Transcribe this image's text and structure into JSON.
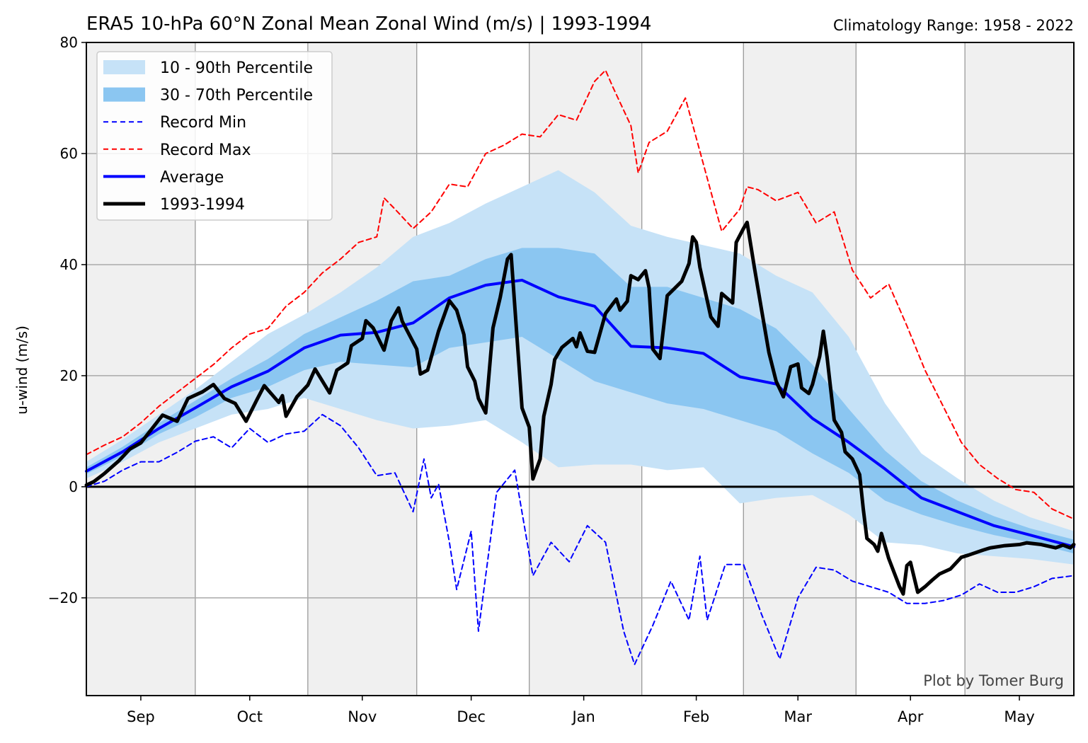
{
  "title": "ERA5 10-hPa 60°N Zonal Mean Zonal Wind (m/s) | 1993-1994",
  "subtitle_right": "Climatology Range: 1958 - 2022",
  "credit": "Plot by Tomer Burg",
  "colors": {
    "band_10_90": "#c6e2f7",
    "band_30_70": "#8bc6f1",
    "record_min": "#0000ff",
    "record_max": "#ff0000",
    "average": "#0000ff",
    "season": "#000000",
    "shaded_background": "#f0f0f0"
  },
  "legend": {
    "placement": "top-left",
    "items": [
      {
        "label": "10 - 90th Percentile",
        "kind": "patch",
        "color": "#c6e2f7"
      },
      {
        "label": "30 - 70th Percentile",
        "kind": "patch",
        "color": "#8bc6f1"
      },
      {
        "label": "Record Min",
        "kind": "dashed",
        "color": "#0000ff"
      },
      {
        "label": "Record Max",
        "kind": "dashed",
        "color": "#ff0000"
      },
      {
        "label": "Average",
        "kind": "line",
        "color": "#0000ff"
      },
      {
        "label": "1993-1994",
        "kind": "thick",
        "color": "#000000"
      }
    ]
  },
  "chart_data": {
    "type": "line",
    "title": "ERA5 10-hPa 60°N Zonal Mean Zonal Wind (m/s) | 1993-1994",
    "xlabel": "",
    "ylabel": "u-wind (m/s)",
    "xlim": [
      "1993-08-17",
      "1994-05-16"
    ],
    "ylim": [
      -37.6,
      80
    ],
    "yticks": [
      -20,
      0,
      20,
      40,
      60,
      80
    ],
    "ytick_labels": [
      "−20",
      "0",
      "20",
      "40",
      "60",
      "80"
    ],
    "xticks": [
      {
        "date": "1993-09-01",
        "label": "Sep"
      },
      {
        "date": "1993-10-01",
        "label": "Oct"
      },
      {
        "date": "1993-11-01",
        "label": "Nov"
      },
      {
        "date": "1993-12-01",
        "label": "Dec"
      },
      {
        "date": "1994-01-01",
        "label": "Jan"
      },
      {
        "date": "1994-02-01",
        "label": "Feb"
      },
      {
        "date": "1994-03-01",
        "label": "Mar"
      },
      {
        "date": "1994-04-01",
        "label": "Apr"
      },
      {
        "date": "1994-05-01",
        "label": "May"
      }
    ],
    "grid": true,
    "vertical_gridlines": [
      "1993-09-16",
      "1993-10-17",
      "1993-11-16",
      "1993-12-17",
      "1994-01-17",
      "1994-02-14",
      "1994-03-17",
      "1994-04-16"
    ],
    "shaded_bands": [
      [
        "1993-08-17",
        "1993-09-16"
      ],
      [
        "1993-10-17",
        "1993-11-16"
      ],
      [
        "1993-12-17",
        "1994-01-17"
      ],
      [
        "1994-02-14",
        "1994-03-17"
      ],
      [
        "1994-04-16",
        "1994-05-16"
      ]
    ],
    "zero_line": 0,
    "climatology_dates": [
      "1993-08-17",
      "1993-08-27",
      "1993-09-06",
      "1993-09-16",
      "1993-09-26",
      "1993-10-06",
      "1993-10-16",
      "1993-10-26",
      "1993-11-05",
      "1993-11-15",
      "1993-11-25",
      "1993-12-05",
      "1993-12-15",
      "1993-12-25",
      "1994-01-04",
      "1994-01-14",
      "1994-01-24",
      "1994-02-03",
      "1994-02-13",
      "1994-02-23",
      "1994-03-05",
      "1994-03-15",
      "1994-03-25",
      "1994-04-04",
      "1994-04-14",
      "1994-04-24",
      "1994-05-04",
      "1994-05-16"
    ],
    "p10": [
      1.5,
      4.5,
      8,
      10.5,
      13,
      14,
      16,
      14,
      12,
      10.5,
      11,
      12,
      8,
      3.5,
      4,
      4,
      3,
      3.5,
      -3,
      -2,
      -1.5,
      -5,
      -10,
      -10.5,
      -12,
      -12.5,
      -13,
      -14
    ],
    "p30": [
      2.3,
      5.5,
      9.5,
      12.5,
      16,
      18,
      21,
      22.5,
      22,
      21.5,
      25,
      26,
      27,
      23,
      19,
      17,
      15,
      14,
      12,
      10,
      6,
      2.5,
      -2.5,
      -5,
      -7,
      -8.7,
      -10,
      -12
    ],
    "p70": [
      3.5,
      7.2,
      11.5,
      15.5,
      19.5,
      23,
      27.5,
      30.5,
      33.5,
      37,
      38,
      41,
      43,
      43,
      42,
      36,
      36,
      34,
      32,
      28.5,
      22,
      14,
      6.5,
      1,
      -2.5,
      -5.3,
      -7.5,
      -9.5
    ],
    "p90": [
      4.5,
      8.5,
      13,
      17.5,
      22.5,
      27.5,
      31,
      35,
      39.5,
      45,
      47.5,
      51,
      54,
      57,
      53,
      47,
      45,
      43.5,
      42,
      38,
      35,
      27,
      15,
      6,
      1.5,
      -2.5,
      -5.5,
      -8
    ],
    "average": [
      2.8,
      6.3,
      10.5,
      14.2,
      18,
      20.8,
      25,
      27.3,
      27.8,
      29.5,
      34,
      36.3,
      37.2,
      34.2,
      32.5,
      25.3,
      25,
      24,
      19.8,
      18.5,
      12.3,
      8,
      3.2,
      -2,
      -4.5,
      -7,
      -8.7,
      -10.8
    ],
    "record_max": [
      [
        "1993-08-17",
        5.8
      ],
      [
        "1993-08-22",
        7.5
      ],
      [
        "1993-08-27",
        9
      ],
      [
        "1993-09-01",
        11.5
      ],
      [
        "1993-09-06",
        14.5
      ],
      [
        "1993-09-11",
        17
      ],
      [
        "1993-09-16",
        19.5
      ],
      [
        "1993-09-21",
        22
      ],
      [
        "1993-09-26",
        25
      ],
      [
        "1993-10-01",
        27.5
      ],
      [
        "1993-10-06",
        28.5
      ],
      [
        "1993-10-11",
        32.5
      ],
      [
        "1993-10-16",
        35
      ],
      [
        "1993-10-21",
        38.5
      ],
      [
        "1993-10-26",
        41
      ],
      [
        "1993-10-31",
        44
      ],
      [
        "1993-11-05",
        45
      ],
      [
        "1993-11-07",
        52
      ],
      [
        "1993-11-10",
        50
      ],
      [
        "1993-11-15",
        46.5
      ],
      [
        "1993-11-20",
        49.5
      ],
      [
        "1993-11-25",
        54.5
      ],
      [
        "1993-11-30",
        54
      ],
      [
        "1993-12-05",
        60
      ],
      [
        "1993-12-10",
        61.5
      ],
      [
        "1993-12-15",
        63.5
      ],
      [
        "1993-12-20",
        63
      ],
      [
        "1993-12-25",
        67
      ],
      [
        "1993-12-30",
        66
      ],
      [
        "1994-01-04",
        73
      ],
      [
        "1994-01-07",
        75
      ],
      [
        "1994-01-09",
        72
      ],
      [
        "1994-01-14",
        65
      ],
      [
        "1994-01-16",
        56.5
      ],
      [
        "1994-01-19",
        62
      ],
      [
        "1994-01-24",
        64
      ],
      [
        "1994-01-29",
        70
      ],
      [
        "1994-02-03",
        58
      ],
      [
        "1994-02-08",
        46
      ],
      [
        "1994-02-13",
        50
      ],
      [
        "1994-02-15",
        54
      ],
      [
        "1994-02-18",
        53.5
      ],
      [
        "1994-02-23",
        51.5
      ],
      [
        "1994-03-01",
        53
      ],
      [
        "1994-03-06",
        47.5
      ],
      [
        "1994-03-11",
        49.5
      ],
      [
        "1994-03-16",
        39
      ],
      [
        "1994-03-21",
        34
      ],
      [
        "1994-03-26",
        36.5
      ],
      [
        "1994-03-31",
        29
      ],
      [
        "1994-04-05",
        21
      ],
      [
        "1994-04-10",
        14.5
      ],
      [
        "1994-04-15",
        8
      ],
      [
        "1994-04-20",
        4
      ],
      [
        "1994-04-25",
        1.5
      ],
      [
        "1994-04-30",
        -0.5
      ],
      [
        "1994-05-05",
        -1
      ],
      [
        "1994-05-10",
        -4
      ],
      [
        "1994-05-16",
        -5.8
      ]
    ],
    "record_min": [
      [
        "1993-08-17",
        0
      ],
      [
        "1993-08-22",
        1
      ],
      [
        "1993-08-27",
        3
      ],
      [
        "1993-09-01",
        4.5
      ],
      [
        "1993-09-06",
        4.5
      ],
      [
        "1993-09-11",
        6.2
      ],
      [
        "1993-09-16",
        8.2
      ],
      [
        "1993-09-21",
        9
      ],
      [
        "1993-09-26",
        7
      ],
      [
        "1993-10-01",
        10.5
      ],
      [
        "1993-10-06",
        8
      ],
      [
        "1993-10-11",
        9.5
      ],
      [
        "1993-10-16",
        10
      ],
      [
        "1993-10-21",
        13
      ],
      [
        "1993-10-26",
        11
      ],
      [
        "1993-10-31",
        7
      ],
      [
        "1993-11-05",
        2
      ],
      [
        "1993-11-10",
        2.5
      ],
      [
        "1993-11-15",
        -4.5
      ],
      [
        "1993-11-18",
        5
      ],
      [
        "1993-11-20",
        -2
      ],
      [
        "1993-11-22",
        0.5
      ],
      [
        "1993-11-25",
        -10
      ],
      [
        "1993-11-27",
        -18.5
      ],
      [
        "1993-12-01",
        -8
      ],
      [
        "1993-12-03",
        -26
      ],
      [
        "1993-12-08",
        -1
      ],
      [
        "1993-12-13",
        3
      ],
      [
        "1993-12-18",
        -16
      ],
      [
        "1993-12-23",
        -10
      ],
      [
        "1993-12-28",
        -13.5
      ],
      [
        "1994-01-02",
        -7
      ],
      [
        "1994-01-07",
        -10
      ],
      [
        "1994-01-12",
        -26
      ],
      [
        "1994-01-15",
        -32
      ],
      [
        "1994-01-20",
        -25
      ],
      [
        "1994-01-25",
        -17
      ],
      [
        "1994-01-30",
        -24
      ],
      [
        "1994-02-02",
        -12.5
      ],
      [
        "1994-02-04",
        -24
      ],
      [
        "1994-02-09",
        -14
      ],
      [
        "1994-02-14",
        -14
      ],
      [
        "1994-02-19",
        -23
      ],
      [
        "1994-02-24",
        -31
      ],
      [
        "1994-03-01",
        -20
      ],
      [
        "1994-03-06",
        -14.5
      ],
      [
        "1994-03-11",
        -15
      ],
      [
        "1994-03-16",
        -17
      ],
      [
        "1994-03-21",
        -18
      ],
      [
        "1994-03-26",
        -19
      ],
      [
        "1994-03-31",
        -21
      ],
      [
        "1994-04-05",
        -21
      ],
      [
        "1994-04-10",
        -20.5
      ],
      [
        "1994-04-15",
        -19.5
      ],
      [
        "1994-04-20",
        -17.5
      ],
      [
        "1994-04-25",
        -19
      ],
      [
        "1994-04-30",
        -19
      ],
      [
        "1994-05-05",
        -18
      ],
      [
        "1994-05-10",
        -16.5
      ],
      [
        "1994-05-16",
        -16
      ]
    ],
    "series_1993_1994": [
      [
        "1993-08-17",
        0.3
      ],
      [
        "1993-08-19",
        0.9
      ],
      [
        "1993-08-22",
        2.4
      ],
      [
        "1993-08-26",
        4.7
      ],
      [
        "1993-08-29",
        6.8
      ],
      [
        "1993-09-01",
        7.9
      ],
      [
        "1993-09-04",
        10.4
      ],
      [
        "1993-09-07",
        12.9
      ],
      [
        "1993-09-11",
        11.8
      ],
      [
        "1993-09-14",
        15.9
      ],
      [
        "1993-09-18",
        17.1
      ],
      [
        "1993-09-21",
        18.4
      ],
      [
        "1993-09-24",
        15.9
      ],
      [
        "1993-09-27",
        15
      ],
      [
        "1993-09-30",
        11.8
      ],
      [
        "1993-10-03",
        15.7
      ],
      [
        "1993-10-05",
        18.2
      ],
      [
        "1993-10-09",
        15.2
      ],
      [
        "1993-10-10",
        16.4
      ],
      [
        "1993-10-11",
        12.7
      ],
      [
        "1993-10-14",
        16.2
      ],
      [
        "1993-10-17",
        18.3
      ],
      [
        "1993-10-19",
        21.2
      ],
      [
        "1993-10-23",
        16.9
      ],
      [
        "1993-10-25",
        21
      ],
      [
        "1993-10-28",
        22.3
      ],
      [
        "1993-10-29",
        25.4
      ],
      [
        "1993-11-01",
        26.7
      ],
      [
        "1993-11-02",
        29.9
      ],
      [
        "1993-11-04",
        28.6
      ],
      [
        "1993-11-07",
        24.6
      ],
      [
        "1993-11-09",
        29.9
      ],
      [
        "1993-11-11",
        32.2
      ],
      [
        "1993-11-12",
        29.8
      ],
      [
        "1993-11-16",
        24.8
      ],
      [
        "1993-11-17",
        20.3
      ],
      [
        "1993-11-19",
        21
      ],
      [
        "1993-11-22",
        28
      ],
      [
        "1993-11-25",
        33.5
      ],
      [
        "1993-11-27",
        31.8
      ],
      [
        "1993-11-29",
        27.4
      ],
      [
        "1993-11-30",
        21.6
      ],
      [
        "1993-12-02",
        19
      ],
      [
        "1993-12-03",
        15.9
      ],
      [
        "1993-12-05",
        13.3
      ],
      [
        "1993-12-07",
        28.6
      ],
      [
        "1993-12-09",
        34.1
      ],
      [
        "1993-12-11",
        41
      ],
      [
        "1993-12-12",
        41.8
      ],
      [
        "1993-12-15",
        14.2
      ],
      [
        "1993-12-17",
        10.7
      ],
      [
        "1993-12-18",
        1.4
      ],
      [
        "1993-12-20",
        5
      ],
      [
        "1993-12-21",
        12.7
      ],
      [
        "1993-12-23",
        18.4
      ],
      [
        "1993-12-24",
        22.9
      ],
      [
        "1993-12-26",
        25.1
      ],
      [
        "1993-12-29",
        26.7
      ],
      [
        "1993-12-30",
        25.2
      ],
      [
        "1993-12-31",
        27.7
      ],
      [
        "1994-01-02",
        24.4
      ],
      [
        "1994-01-04",
        24.2
      ],
      [
        "1994-01-07",
        31.2
      ],
      [
        "1994-01-10",
        33.8
      ],
      [
        "1994-01-11",
        31.8
      ],
      [
        "1994-01-13",
        33.4
      ],
      [
        "1994-01-14",
        38
      ],
      [
        "1994-01-16",
        37.3
      ],
      [
        "1994-01-18",
        38.9
      ],
      [
        "1994-01-19",
        35.8
      ],
      [
        "1994-01-20",
        24.8
      ],
      [
        "1994-01-22",
        23.1
      ],
      [
        "1994-01-24",
        34.4
      ],
      [
        "1994-01-28",
        37
      ],
      [
        "1994-01-30",
        40.2
      ],
      [
        "1994-01-31",
        45
      ],
      [
        "1994-02-01",
        44
      ],
      [
        "1994-02-02",
        39.5
      ],
      [
        "1994-02-05",
        30.6
      ],
      [
        "1994-02-07",
        28.9
      ],
      [
        "1994-02-08",
        34.8
      ],
      [
        "1994-02-11",
        33.1
      ],
      [
        "1994-02-12",
        44
      ],
      [
        "1994-02-14",
        46.5
      ],
      [
        "1994-02-15",
        47.6
      ],
      [
        "1994-02-17",
        39.5
      ],
      [
        "1994-02-19",
        31.8
      ],
      [
        "1994-02-21",
        24.2
      ],
      [
        "1994-02-23",
        19
      ],
      [
        "1994-02-25",
        16.2
      ],
      [
        "1994-02-27",
        21.6
      ],
      [
        "1994-03-01",
        22.1
      ],
      [
        "1994-03-02",
        17.8
      ],
      [
        "1994-03-04",
        16.8
      ],
      [
        "1994-03-05",
        18.4
      ],
      [
        "1994-03-07",
        23.5
      ],
      [
        "1994-03-08",
        28
      ],
      [
        "1994-03-09",
        23.5
      ],
      [
        "1994-03-11",
        12
      ],
      [
        "1994-03-13",
        9.8
      ],
      [
        "1994-03-14",
        6.3
      ],
      [
        "1994-03-16",
        5
      ],
      [
        "1994-03-18",
        2.2
      ],
      [
        "1994-03-19",
        -4
      ],
      [
        "1994-03-20",
        -9.3
      ],
      [
        "1994-03-22",
        -10.4
      ],
      [
        "1994-03-23",
        -11.6
      ],
      [
        "1994-03-24",
        -8.4
      ],
      [
        "1994-03-26",
        -12.9
      ],
      [
        "1994-03-29",
        -18
      ],
      [
        "1994-03-30",
        -19.3
      ],
      [
        "1994-03-31",
        -14.2
      ],
      [
        "1994-04-01",
        -13.6
      ],
      [
        "1994-04-03",
        -19
      ],
      [
        "1994-04-05",
        -18
      ],
      [
        "1994-04-07",
        -16.8
      ],
      [
        "1994-04-09",
        -15.7
      ],
      [
        "1994-04-12",
        -14.8
      ],
      [
        "1994-04-15",
        -12.7
      ],
      [
        "1994-04-17",
        -12.3
      ],
      [
        "1994-04-21",
        -11.4
      ],
      [
        "1994-04-23",
        -11
      ],
      [
        "1994-04-27",
        -10.6
      ],
      [
        "1994-05-01",
        -10.4
      ],
      [
        "1994-05-03",
        -10.1
      ],
      [
        "1994-05-07",
        -10.4
      ],
      [
        "1994-05-11",
        -11
      ],
      [
        "1994-05-13",
        -10.5
      ],
      [
        "1994-05-15",
        -11
      ],
      [
        "1994-05-16",
        -10.4
      ]
    ]
  }
}
